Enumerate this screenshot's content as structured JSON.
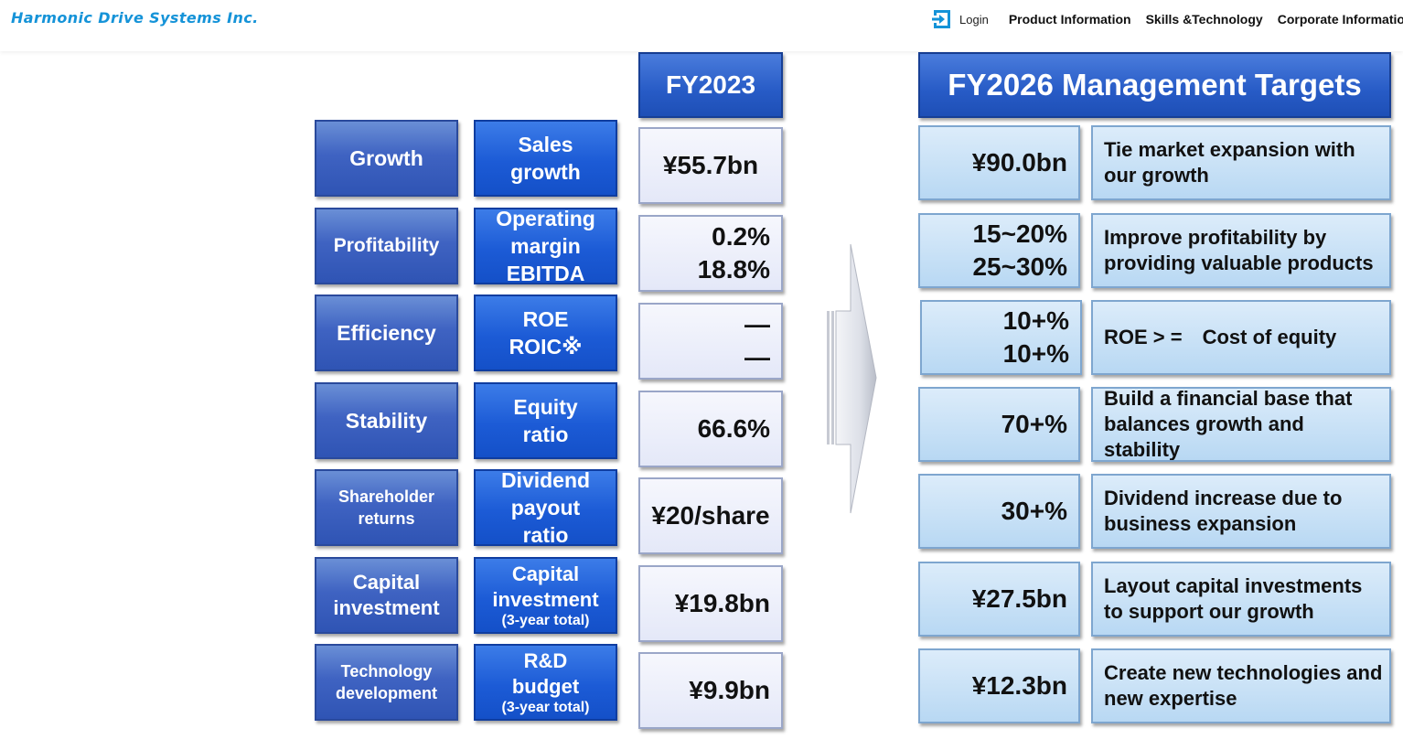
{
  "header": {
    "logo": "Harmonic Drive Systems Inc.",
    "login": "Login",
    "nav": [
      "Product Information",
      "Skills &Technology",
      "Corporate Information"
    ]
  },
  "table": {
    "fy2023_header": "FY2023",
    "fy2026_header": "FY2026 Management Targets",
    "rows": [
      {
        "category": [
          "Growth"
        ],
        "metric": [
          "Sales",
          "growth"
        ],
        "metric_sub": "",
        "fy2023": [
          "¥55.7bn"
        ],
        "target": [
          "¥90.0bn"
        ],
        "description": "Tie market expansion with our growth"
      },
      {
        "category": [
          "Profitability"
        ],
        "metric": [
          "Operating",
          "margin",
          "EBITDA"
        ],
        "metric_sub": "",
        "fy2023": [
          "0.2%",
          "18.8%"
        ],
        "target": [
          "15~20%",
          "25~30%"
        ],
        "description": "Improve profitability by providing valuable products"
      },
      {
        "category": [
          "Efficiency"
        ],
        "metric": [
          "ROE",
          "ROIC※"
        ],
        "metric_sub": "",
        "fy2023": [
          "—",
          "—"
        ],
        "target": [
          "10+%",
          "10+%"
        ],
        "description": "ROE > =　Cost of equity"
      },
      {
        "category": [
          "Stability"
        ],
        "metric": [
          "Equity",
          "ratio"
        ],
        "metric_sub": "",
        "fy2023": [
          "66.6%"
        ],
        "target": [
          "70+%"
        ],
        "description": "Build a financial base that balances growth and stability"
      },
      {
        "category": [
          "Shareholder",
          "returns"
        ],
        "metric": [
          "Dividend",
          "payout",
          "ratio"
        ],
        "metric_sub": "",
        "fy2023": [
          "¥20/share"
        ],
        "target": [
          "30+%"
        ],
        "description": "Dividend increase due to business expansion"
      },
      {
        "category": [
          "Capital",
          "investment"
        ],
        "metric": [
          "Capital",
          "investment"
        ],
        "metric_sub": "(3-year total)",
        "fy2023": [
          "¥19.8bn"
        ],
        "target": [
          "¥27.5bn"
        ],
        "description": "Layout capital investments to support our growth"
      },
      {
        "category": [
          "Technology",
          "development"
        ],
        "metric": [
          "R&D",
          "budget"
        ],
        "metric_sub": "(3-year total)",
        "fy2023": [
          "¥9.9bn"
        ],
        "target": [
          "¥12.3bn"
        ],
        "description": "Create new technologies and new expertise"
      }
    ]
  },
  "colors": {
    "logo": "#1593d8",
    "category": "#3f63c2",
    "metric": "#1c5bd6",
    "fy2023_cell": "#e4e8f8",
    "target_cell": "#b8d8f3"
  },
  "icons": {
    "login": "login-arrow-icon",
    "transition": "right-arrow-icon"
  }
}
